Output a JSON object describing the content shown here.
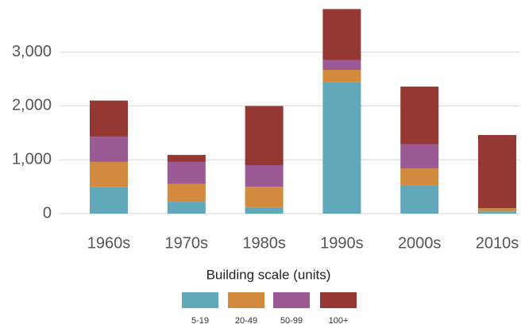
{
  "chart_data": {
    "type": "stacked_bar",
    "categories": [
      "1960s",
      "1970s",
      "1980s",
      "1990s",
      "2000s",
      "2010s"
    ],
    "series": [
      {
        "name": "5-19",
        "color": "#62a8bb",
        "values": [
          500,
          220,
          120,
          2440,
          530,
          40
        ]
      },
      {
        "name": "20-49",
        "color": "#d28a3e",
        "values": [
          460,
          330,
          380,
          230,
          310,
          60
        ]
      },
      {
        "name": "50-99",
        "color": "#9b5a93",
        "values": [
          470,
          410,
          400,
          180,
          450,
          0
        ]
      },
      {
        "name": "100+",
        "color": "#953833",
        "values": [
          670,
          130,
          1100,
          950,
          1070,
          1360
        ]
      }
    ],
    "legend_title": "Building scale (units)",
    "ylim": [
      0,
      3850
    ],
    "yticks": [
      0,
      {
        "value": 1000,
        "label": "1,000"
      },
      {
        "value": 2000,
        "label": "2,000"
      },
      {
        "value": 3000,
        "label": "3,000"
      }
    ],
    "grid": true
  }
}
